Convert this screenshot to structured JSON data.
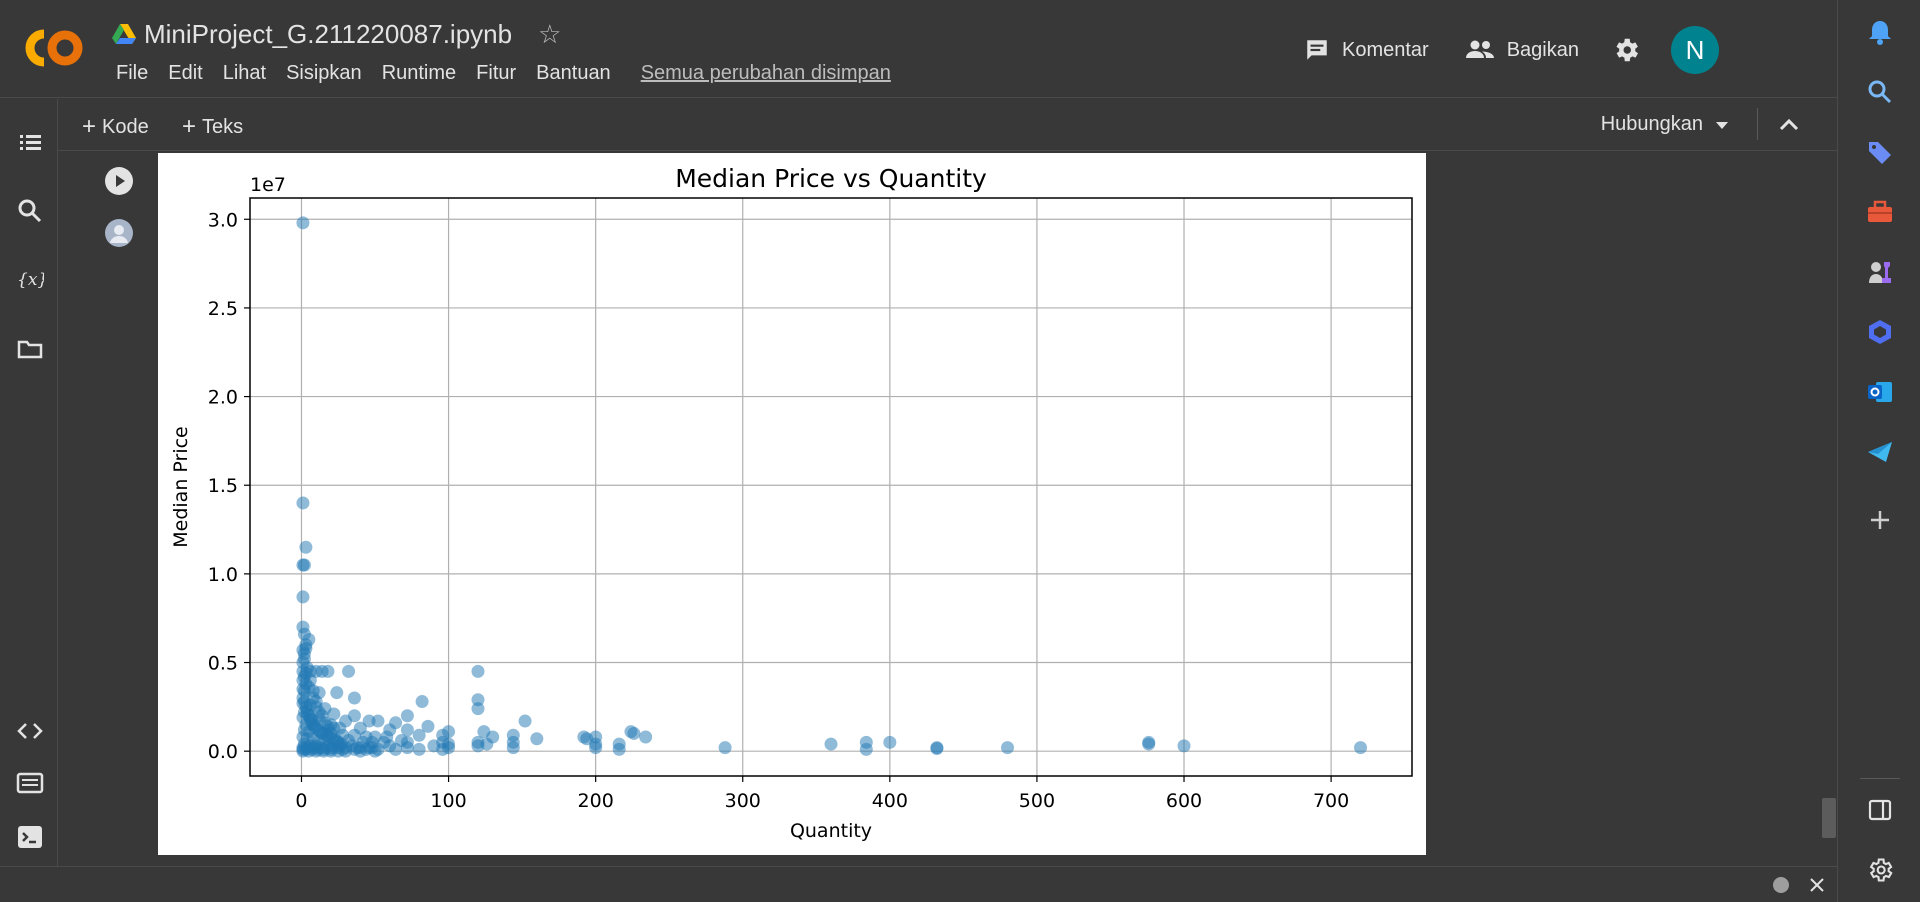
{
  "header": {
    "doc_title": "MiniProject_G.211220087.ipynb",
    "menu": [
      "File",
      "Edit",
      "Lihat",
      "Sisipkan",
      "Runtime",
      "Fitur",
      "Bantuan"
    ],
    "saved_status": "Semua perubahan disimpan",
    "comment_label": "Komentar",
    "share_label": "Bagikan",
    "avatar_letter": "N"
  },
  "toolbar": {
    "add_code": "Kode",
    "add_text": "Teks",
    "connect_label": "Hubungkan"
  },
  "colors": {
    "background": "#383838",
    "avatar": "#00838f",
    "point": "#1f77b4"
  },
  "chart_data": {
    "type": "scatter",
    "title": "Median Price vs Quantity",
    "xlabel": "Quantity",
    "ylabel": "Median Price",
    "y_offset_label": "1e7",
    "xlim": [
      -35,
      755
    ],
    "ylim": [
      -0.14,
      3.12
    ],
    "x_ticks": [
      0,
      100,
      200,
      300,
      400,
      500,
      600,
      700
    ],
    "y_ticks": [
      0.0,
      0.5,
      1.0,
      1.5,
      2.0,
      2.5,
      3.0
    ],
    "y_tick_labels": [
      "0.0",
      "0.5",
      "1.0",
      "1.5",
      "2.0",
      "2.5",
      "3.0"
    ],
    "grid": true,
    "points": [
      [
        1,
        2.98
      ],
      [
        1,
        1.4
      ],
      [
        3,
        1.15
      ],
      [
        1,
        1.05
      ],
      [
        2,
        1.05
      ],
      [
        1,
        0.87
      ],
      [
        1,
        0.7
      ],
      [
        2,
        0.66
      ],
      [
        5,
        0.63
      ],
      [
        3,
        0.6
      ],
      [
        1,
        0.57
      ],
      [
        2,
        0.52
      ],
      [
        4,
        0.47
      ],
      [
        1,
        0.45
      ],
      [
        6,
        0.45
      ],
      [
        10,
        0.45
      ],
      [
        14,
        0.45
      ],
      [
        18,
        0.45
      ],
      [
        32,
        0.45
      ],
      [
        120,
        0.45
      ],
      [
        1,
        0.4
      ],
      [
        3,
        0.38
      ],
      [
        5,
        0.36
      ],
      [
        2,
        0.34
      ],
      [
        8,
        0.34
      ],
      [
        12,
        0.33
      ],
      [
        24,
        0.33
      ],
      [
        36,
        0.3
      ],
      [
        120,
        0.29
      ],
      [
        82,
        0.28
      ],
      [
        1,
        0.27
      ],
      [
        6,
        0.26
      ],
      [
        10,
        0.25
      ],
      [
        16,
        0.24
      ],
      [
        120,
        0.24
      ],
      [
        2,
        0.22
      ],
      [
        4,
        0.21
      ],
      [
        22,
        0.21
      ],
      [
        36,
        0.2
      ],
      [
        72,
        0.2
      ],
      [
        1,
        0.19
      ],
      [
        7,
        0.18
      ],
      [
        12,
        0.18
      ],
      [
        30,
        0.17
      ],
      [
        46,
        0.17
      ],
      [
        52,
        0.17
      ],
      [
        152,
        0.17
      ],
      [
        64,
        0.16
      ],
      [
        86,
        0.14
      ],
      [
        3,
        0.15
      ],
      [
        9,
        0.14
      ],
      [
        18,
        0.14
      ],
      [
        26,
        0.13
      ],
      [
        40,
        0.13
      ],
      [
        60,
        0.12
      ],
      [
        72,
        0.12
      ],
      [
        100,
        0.11
      ],
      [
        124,
        0.11
      ],
      [
        224,
        0.11
      ],
      [
        226,
        0.1
      ],
      [
        2,
        0.12
      ],
      [
        5,
        0.11
      ],
      [
        14,
        0.1
      ],
      [
        20,
        0.1
      ],
      [
        28,
        0.09
      ],
      [
        36,
        0.09
      ],
      [
        44,
        0.08
      ],
      [
        50,
        0.08
      ],
      [
        58,
        0.08
      ],
      [
        80,
        0.09
      ],
      [
        96,
        0.09
      ],
      [
        130,
        0.08
      ],
      [
        144,
        0.09
      ],
      [
        160,
        0.07
      ],
      [
        192,
        0.08
      ],
      [
        194,
        0.07
      ],
      [
        200,
        0.08
      ],
      [
        234,
        0.08
      ],
      [
        1,
        0.08
      ],
      [
        4,
        0.07
      ],
      [
        8,
        0.07
      ],
      [
        12,
        0.06
      ],
      [
        16,
        0.06
      ],
      [
        24,
        0.06
      ],
      [
        32,
        0.06
      ],
      [
        42,
        0.05
      ],
      [
        48,
        0.05
      ],
      [
        56,
        0.05
      ],
      [
        68,
        0.06
      ],
      [
        72,
        0.05
      ],
      [
        96,
        0.05
      ],
      [
        100,
        0.04
      ],
      [
        120,
        0.05
      ],
      [
        126,
        0.04
      ],
      [
        144,
        0.05
      ],
      [
        200,
        0.04
      ],
      [
        216,
        0.04
      ],
      [
        360,
        0.04
      ],
      [
        384,
        0.05
      ],
      [
        400,
        0.05
      ],
      [
        576,
        0.05
      ],
      [
        576,
        0.04
      ],
      [
        2,
        0.04
      ],
      [
        6,
        0.03
      ],
      [
        10,
        0.03
      ],
      [
        18,
        0.03
      ],
      [
        26,
        0.03
      ],
      [
        34,
        0.03
      ],
      [
        40,
        0.02
      ],
      [
        48,
        0.02
      ],
      [
        60,
        0.03
      ],
      [
        72,
        0.02
      ],
      [
        90,
        0.03
      ],
      [
        100,
        0.02
      ],
      [
        120,
        0.03
      ],
      [
        144,
        0.02
      ],
      [
        200,
        0.02
      ],
      [
        216,
        0.01
      ],
      [
        288,
        0.02
      ],
      [
        384,
        0.01
      ],
      [
        432,
        0.02
      ],
      [
        432,
        0.015
      ],
      [
        480,
        0.02
      ],
      [
        600,
        0.03
      ],
      [
        720,
        0.02
      ],
      [
        1,
        0.01
      ],
      [
        3,
        0.01
      ],
      [
        7,
        0.01
      ],
      [
        11,
        0.01
      ],
      [
        15,
        0.01
      ],
      [
        20,
        0.01
      ],
      [
        28,
        0.01
      ],
      [
        36,
        0.01
      ],
      [
        44,
        0.01
      ],
      [
        52,
        0.01
      ],
      [
        64,
        0.01
      ],
      [
        80,
        0.01
      ],
      [
        96,
        0.01
      ],
      [
        1,
        0.02
      ],
      [
        4,
        0.02
      ],
      [
        9,
        0.02
      ],
      [
        13,
        0.02
      ],
      [
        17,
        0.02
      ],
      [
        21,
        0.02
      ],
      [
        25,
        0.02
      ],
      [
        30,
        0.02
      ],
      [
        38,
        0.02
      ],
      [
        46,
        0.02
      ],
      [
        1,
        0.0
      ],
      [
        5,
        0.0
      ],
      [
        10,
        0.0
      ],
      [
        15,
        0.0
      ],
      [
        20,
        0.0
      ],
      [
        25,
        0.0
      ],
      [
        30,
        0.0
      ],
      [
        40,
        0.0
      ],
      [
        50,
        0.0
      ],
      [
        1,
        0.3
      ],
      [
        2,
        0.28
      ],
      [
        3,
        0.25
      ],
      [
        4,
        0.23
      ],
      [
        5,
        0.2
      ],
      [
        6,
        0.18
      ],
      [
        7,
        0.16
      ],
      [
        8,
        0.15
      ],
      [
        9,
        0.13
      ],
      [
        11,
        0.12
      ],
      [
        13,
        0.11
      ],
      [
        15,
        0.1
      ],
      [
        17,
        0.09
      ],
      [
        19,
        0.08
      ],
      [
        21,
        0.07
      ],
      [
        23,
        0.06
      ],
      [
        25,
        0.05
      ],
      [
        27,
        0.04
      ],
      [
        1,
        0.35
      ],
      [
        2,
        0.42
      ],
      [
        3,
        0.44
      ],
      [
        1,
        0.5
      ],
      [
        2,
        0.55
      ],
      [
        3,
        0.58
      ],
      [
        6,
        0.4
      ],
      [
        8,
        0.3
      ],
      [
        10,
        0.28
      ],
      [
        12,
        0.22
      ],
      [
        14,
        0.2
      ],
      [
        16,
        0.16
      ],
      [
        18,
        0.12
      ],
      [
        20,
        0.15
      ],
      [
        22,
        0.13
      ]
    ]
  }
}
